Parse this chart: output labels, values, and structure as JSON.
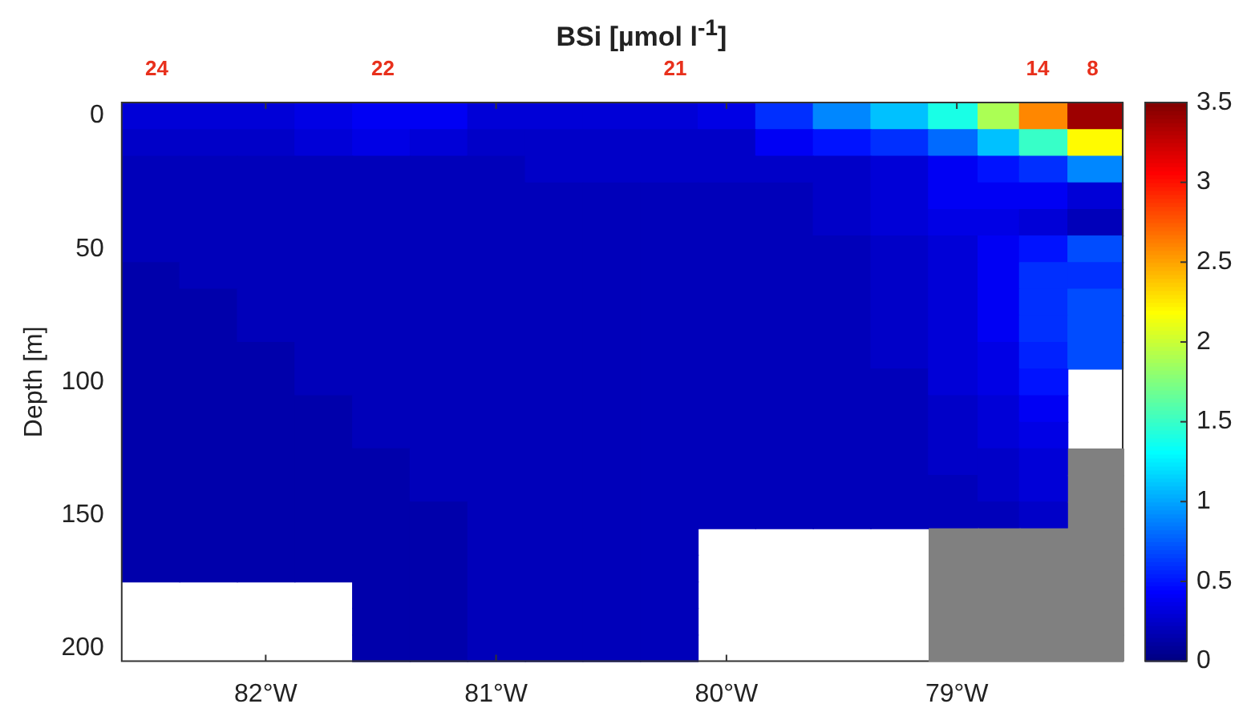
{
  "chart_data": {
    "type": "heatmap",
    "title": "BSi [µmol l$^{-1}$]",
    "ylabel": "Depth [m]",
    "x": [
      -82.5,
      -82.25,
      -82.0,
      -81.75,
      -81.5,
      -81.25,
      -81.0,
      -80.75,
      -80.5,
      -80.25,
      -80.0,
      -79.75,
      -79.5,
      -79.25,
      -79.0,
      -78.82,
      -78.64,
      -78.4
    ],
    "xlim": [
      -82.625,
      -78.28
    ],
    "xticks": [
      {
        "value": -82,
        "label": "82°W"
      },
      {
        "value": -81,
        "label": "81°W"
      },
      {
        "value": -80,
        "label": "80°W"
      },
      {
        "value": -79,
        "label": "79°W"
      }
    ],
    "annotations": [
      "24",
      "22",
      "21",
      "14",
      "8"
    ],
    "y_categories": [
      "0",
      null,
      null,
      null,
      null,
      "50",
      null,
      null,
      null,
      null,
      "100",
      null,
      null,
      null,
      null,
      "150",
      null,
      null,
      null,
      null,
      "200"
    ],
    "cells": [
      [
        0.3,
        0.3,
        0.3,
        0.35,
        0.4,
        0.4,
        0.3,
        0.3,
        0.3,
        0.3,
        0.35,
        0.6,
        0.9,
        1.1,
        1.4,
        1.9,
        2.6,
        3.4
      ],
      [
        0.25,
        0.25,
        0.25,
        0.3,
        0.35,
        0.3,
        0.25,
        0.25,
        0.25,
        0.25,
        0.25,
        0.4,
        0.5,
        0.6,
        0.8,
        1.1,
        1.5,
        2.2
      ],
      [
        0.2,
        0.2,
        0.2,
        0.2,
        0.2,
        0.2,
        0.2,
        0.25,
        0.25,
        0.25,
        0.25,
        0.25,
        0.25,
        0.3,
        0.4,
        0.5,
        0.6,
        0.9
      ],
      [
        0.2,
        0.2,
        0.2,
        0.2,
        0.2,
        0.2,
        0.2,
        0.2,
        0.2,
        0.2,
        0.2,
        0.2,
        0.25,
        0.3,
        0.4,
        0.4,
        0.4,
        0.3
      ],
      [
        0.2,
        0.2,
        0.2,
        0.2,
        0.2,
        0.2,
        0.2,
        0.2,
        0.2,
        0.2,
        0.2,
        0.2,
        0.25,
        0.3,
        0.35,
        0.35,
        0.3,
        0.2
      ],
      [
        0.2,
        0.2,
        0.2,
        0.2,
        0.2,
        0.2,
        0.2,
        0.2,
        0.2,
        0.2,
        0.2,
        0.2,
        0.2,
        0.25,
        0.3,
        0.4,
        0.5,
        0.7
      ],
      [
        0.15,
        0.2,
        0.2,
        0.2,
        0.2,
        0.2,
        0.2,
        0.2,
        0.2,
        0.2,
        0.2,
        0.2,
        0.2,
        0.25,
        0.3,
        0.4,
        0.6,
        0.6
      ],
      [
        0.15,
        0.15,
        0.2,
        0.2,
        0.2,
        0.2,
        0.2,
        0.2,
        0.2,
        0.2,
        0.2,
        0.2,
        0.2,
        0.25,
        0.3,
        0.4,
        0.6,
        0.7
      ],
      [
        0.15,
        0.15,
        0.2,
        0.2,
        0.2,
        0.2,
        0.2,
        0.2,
        0.2,
        0.2,
        0.2,
        0.2,
        0.2,
        0.25,
        0.3,
        0.4,
        0.6,
        0.7
      ],
      [
        0.15,
        0.15,
        0.15,
        0.2,
        0.2,
        0.2,
        0.2,
        0.2,
        0.2,
        0.2,
        0.2,
        0.2,
        0.2,
        0.25,
        0.3,
        0.35,
        0.55,
        0.7
      ],
      [
        0.15,
        0.15,
        0.15,
        0.2,
        0.2,
        0.2,
        0.2,
        0.2,
        0.2,
        0.2,
        0.2,
        0.2,
        0.2,
        0.2,
        0.3,
        0.35,
        0.5,
        null
      ],
      [
        0.15,
        0.15,
        0.15,
        0.15,
        0.2,
        0.2,
        0.2,
        0.2,
        0.2,
        0.2,
        0.2,
        0.2,
        0.2,
        0.2,
        0.25,
        0.3,
        0.4,
        null
      ],
      [
        0.15,
        0.15,
        0.15,
        0.15,
        0.2,
        0.2,
        0.2,
        0.2,
        0.2,
        0.2,
        0.2,
        0.2,
        0.2,
        0.2,
        0.25,
        0.3,
        0.35,
        null
      ],
      [
        0.15,
        0.15,
        0.15,
        0.15,
        0.15,
        0.2,
        0.2,
        0.2,
        0.2,
        0.2,
        0.2,
        0.2,
        0.2,
        0.2,
        0.25,
        0.25,
        0.3,
        null
      ],
      [
        0.15,
        0.15,
        0.15,
        0.15,
        0.15,
        0.2,
        0.2,
        0.2,
        0.2,
        0.2,
        0.2,
        0.2,
        0.2,
        0.2,
        0.2,
        0.25,
        0.3,
        null
      ],
      [
        0.15,
        0.15,
        0.15,
        0.15,
        0.15,
        0.15,
        0.2,
        0.2,
        0.2,
        0.2,
        0.2,
        0.2,
        0.2,
        0.2,
        0.2,
        0.2,
        0.25,
        null
      ],
      [
        0.15,
        0.15,
        0.15,
        0.15,
        0.15,
        0.15,
        0.2,
        0.2,
        0.2,
        0.2,
        null,
        null,
        null,
        null,
        null,
        null,
        null,
        null
      ],
      [
        0.15,
        0.15,
        0.15,
        0.15,
        0.15,
        0.15,
        0.2,
        0.2,
        0.2,
        0.2,
        null,
        null,
        null,
        null,
        null,
        null,
        null,
        null
      ],
      [
        null,
        null,
        null,
        null,
        0.15,
        0.15,
        0.2,
        0.2,
        0.2,
        0.2,
        null,
        null,
        null,
        null,
        null,
        null,
        null,
        null
      ],
      [
        null,
        null,
        null,
        null,
        0.15,
        0.15,
        0.2,
        0.2,
        0.2,
        0.2,
        null,
        null,
        null,
        null,
        null,
        null,
        null,
        null
      ],
      [
        null,
        null,
        null,
        null,
        0.15,
        0.15,
        0.2,
        0.2,
        0.2,
        0.2,
        null,
        null,
        null,
        null,
        null,
        null,
        null,
        null
      ]
    ],
    "clim": [
      0,
      3.5
    ],
    "cticks": [
      0,
      0.5,
      1,
      1.5,
      2,
      2.5,
      3,
      3.5
    ]
  }
}
